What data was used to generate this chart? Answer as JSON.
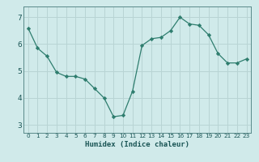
{
  "x": [
    0,
    1,
    2,
    3,
    4,
    5,
    6,
    7,
    8,
    9,
    10,
    11,
    12,
    13,
    14,
    15,
    16,
    17,
    18,
    19,
    20,
    21,
    22,
    23
  ],
  "y": [
    6.6,
    5.85,
    5.55,
    4.95,
    4.8,
    4.8,
    4.7,
    4.35,
    4.0,
    3.3,
    3.35,
    4.25,
    5.95,
    6.2,
    6.25,
    6.5,
    7.0,
    6.75,
    6.7,
    6.35,
    5.65,
    5.3,
    5.3,
    5.45
  ],
  "line_color": "#2e7d6e",
  "marker_color": "#2e7d6e",
  "bg_color": "#d0eaea",
  "grid_color": "#b8d4d4",
  "xlabel": "Humidex (Indice chaleur)",
  "xlim": [
    -0.5,
    23.5
  ],
  "ylim": [
    2.7,
    7.4
  ],
  "yticks": [
    3,
    4,
    5,
    6,
    7
  ],
  "xticks": [
    0,
    1,
    2,
    3,
    4,
    5,
    6,
    7,
    8,
    9,
    10,
    11,
    12,
    13,
    14,
    15,
    16,
    17,
    18,
    19,
    20,
    21,
    22,
    23
  ]
}
